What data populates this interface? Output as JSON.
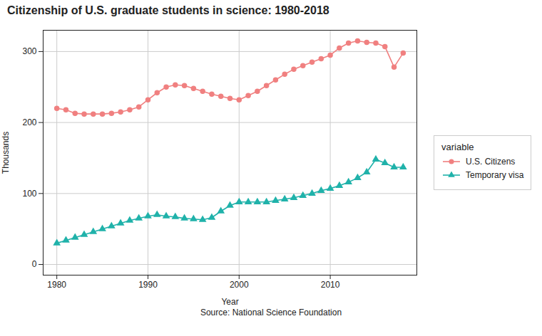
{
  "chart_data": {
    "type": "line",
    "title": "Citizenship of U.S. graduate students in science: 1980-2018",
    "xlabel": "Year",
    "ylabel": "Thousands",
    "source": "Source: National Science Foundation",
    "legend_title": "variable",
    "legend": "right",
    "grid": true,
    "xlim": [
      1978.5,
      2019.5
    ],
    "xticks": [
      1980,
      1990,
      2000,
      2010
    ],
    "ylim": [
      -15,
      330
    ],
    "yticks": [
      0,
      100,
      200,
      300
    ],
    "x": [
      1980,
      1981,
      1982,
      1983,
      1984,
      1985,
      1986,
      1987,
      1988,
      1989,
      1990,
      1991,
      1992,
      1993,
      1994,
      1995,
      1996,
      1997,
      1998,
      1999,
      2000,
      2001,
      2002,
      2003,
      2004,
      2005,
      2006,
      2007,
      2008,
      2009,
      2010,
      2011,
      2012,
      2013,
      2014,
      2015,
      2016,
      2017,
      2018
    ],
    "series": [
      {
        "name": "U.S. Citizens",
        "color": "#F08080",
        "marker": "circle",
        "values": [
          220,
          218,
          213,
          212,
          212,
          212,
          213,
          215,
          218,
          222,
          232,
          242,
          250,
          253,
          252,
          248,
          244,
          240,
          237,
          234,
          232,
          238,
          244,
          252,
          260,
          268,
          275,
          280,
          285,
          290,
          295,
          305,
          312,
          315,
          313,
          312,
          307,
          278,
          298
        ]
      },
      {
        "name": "Temporary visa",
        "color": "#20B2AA",
        "marker": "triangle",
        "values": [
          30,
          34,
          38,
          42,
          46,
          50,
          54,
          58,
          62,
          65,
          68,
          70,
          68,
          67,
          65,
          64,
          63,
          66,
          75,
          83,
          88,
          88,
          88,
          88,
          90,
          92,
          94,
          97,
          100,
          104,
          107,
          111,
          116,
          122,
          130,
          148,
          143,
          137,
          137
        ]
      }
    ]
  }
}
